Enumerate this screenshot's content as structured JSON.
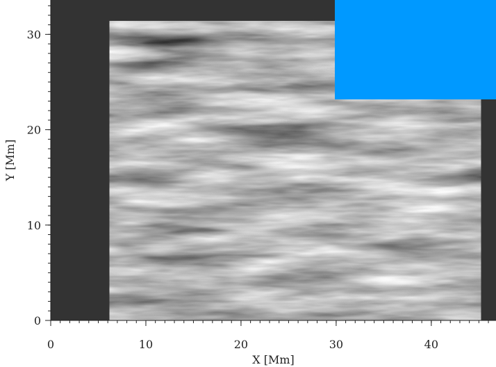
{
  "chart_data": {
    "type": "image",
    "xlabel": "X [Mm]",
    "ylabel": "Y [Mm]",
    "xlim": [
      0,
      46.8
    ],
    "ylim": [
      0,
      33.6
    ],
    "xticks": [
      0,
      10,
      20,
      30,
      40
    ],
    "yticks": [
      0,
      10,
      20,
      30
    ],
    "minor_tick_step": 1,
    "image_extent": [
      6.2,
      45.2,
      0,
      31.4
    ],
    "background": "#333333",
    "cmap": "gray"
  }
}
